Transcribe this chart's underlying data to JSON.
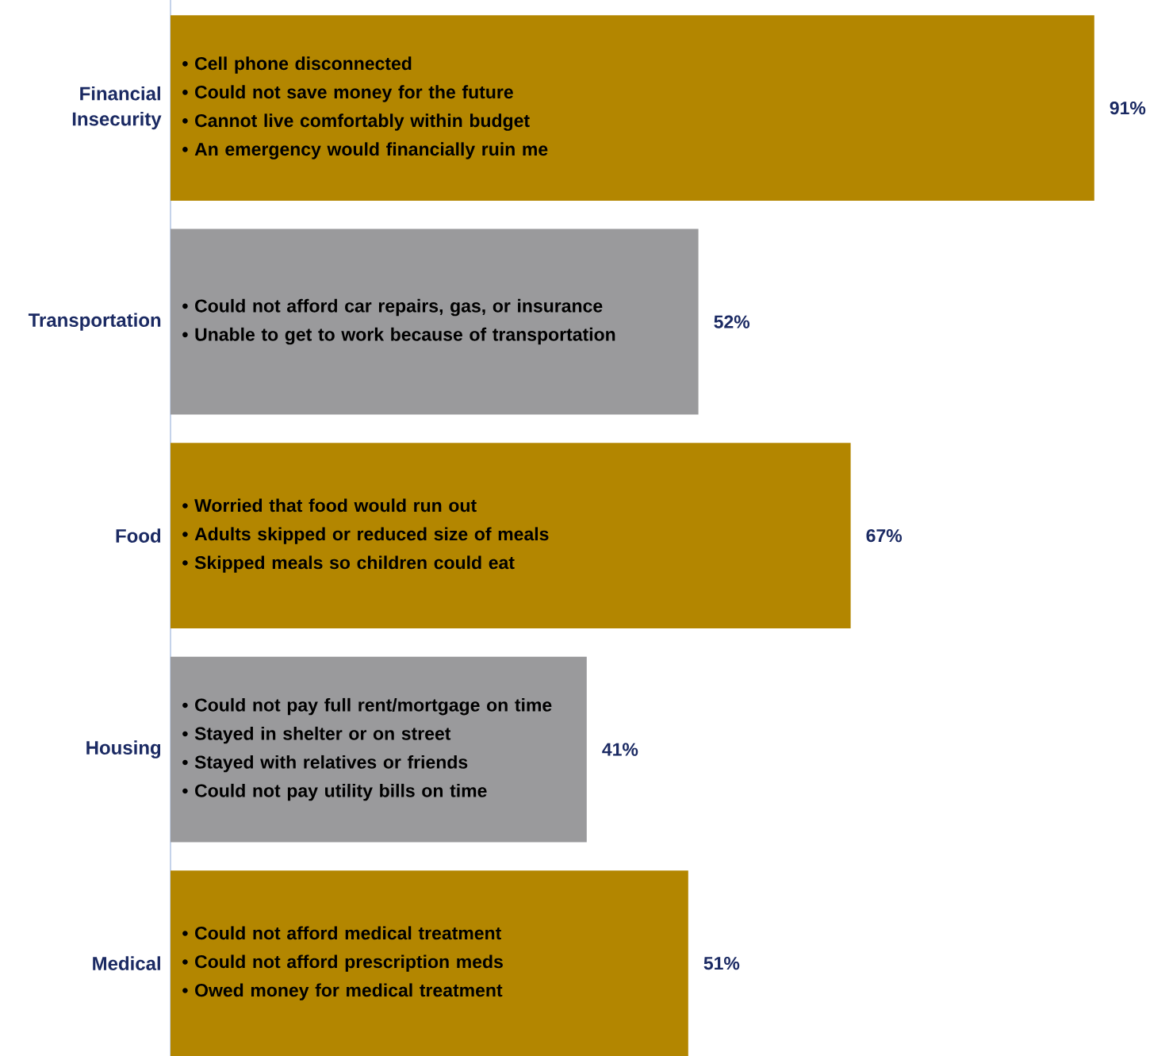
{
  "chart_data": {
    "type": "bar",
    "orientation": "horizontal",
    "categories": [
      "Financial Insecurity",
      "Transportation",
      "Food",
      "Housing",
      "Medical"
    ],
    "values": [
      91,
      52,
      67,
      41,
      51
    ],
    "colors": [
      "#b38600",
      "#9a9a9c",
      "#b38600",
      "#9a9a9c",
      "#b38600"
    ],
    "value_labels": [
      "91%",
      "52%",
      "67%",
      "41%",
      "51%"
    ],
    "annotations": [
      "• Cell phone disconnected",
      "• Could not save money for the future",
      "• Cannot live comfortably within budget",
      "• An emergency would financially ruin me",
      "• Could not afford car repairs, gas, or insurance",
      "• Unable to get to work because of transportation",
      "• Worried that food would run out",
      "• Adults skipped or reduced size of meals",
      "• Skipped meals so children could eat",
      "• Could not pay full rent/mortgage on time",
      "• Stayed in shelter or on street",
      "• Stayed with relatives or friends",
      "• Could not pay utility bills on time",
      "• Could not afford medical treatment",
      "• Could not afford prescription meds",
      "• Owed money for medical treatment"
    ]
  }
}
